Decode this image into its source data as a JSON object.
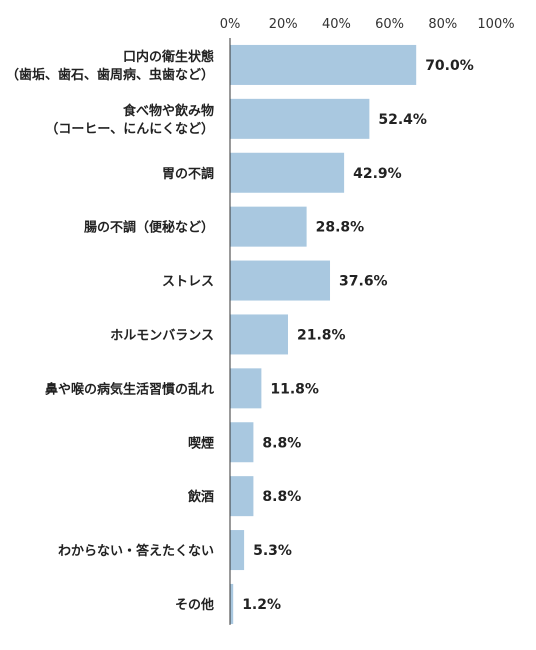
{
  "chart_data": {
    "type": "bar",
    "orientation": "horizontal",
    "xlim": [
      0,
      100
    ],
    "ticks": [
      "0%",
      "20%",
      "40%",
      "60%",
      "80%",
      "100%"
    ],
    "tick_values": [
      0,
      20,
      40,
      60,
      80,
      100
    ],
    "unit": "%",
    "grid": false,
    "legend": "none",
    "bar_color": "#a9c8e0",
    "categories": [
      [
        "口内の衛生状態",
        "（歯垢、歯石、歯周病、虫歯など）"
      ],
      [
        "食べ物や飲み物",
        "（コーヒー、にんにくなど）"
      ],
      [
        "胃の不調"
      ],
      [
        "腸の不調（便秘など）"
      ],
      [
        "ストレス"
      ],
      [
        "ホルモンバランス"
      ],
      [
        "鼻や喉の病気生活習慣の乱れ"
      ],
      [
        "喫煙"
      ],
      [
        "飲酒"
      ],
      [
        "わからない・答えたくない"
      ],
      [
        "その他"
      ]
    ],
    "values": [
      70.0,
      52.4,
      42.9,
      28.8,
      37.6,
      21.8,
      11.8,
      8.8,
      8.8,
      5.3,
      1.2
    ],
    "value_labels": [
      "70.0%",
      "52.4%",
      "42.9%",
      "28.8%",
      "37.6%",
      "21.8%",
      "11.8%",
      "8.8%",
      "8.8%",
      "5.3%",
      "1.2%"
    ]
  }
}
